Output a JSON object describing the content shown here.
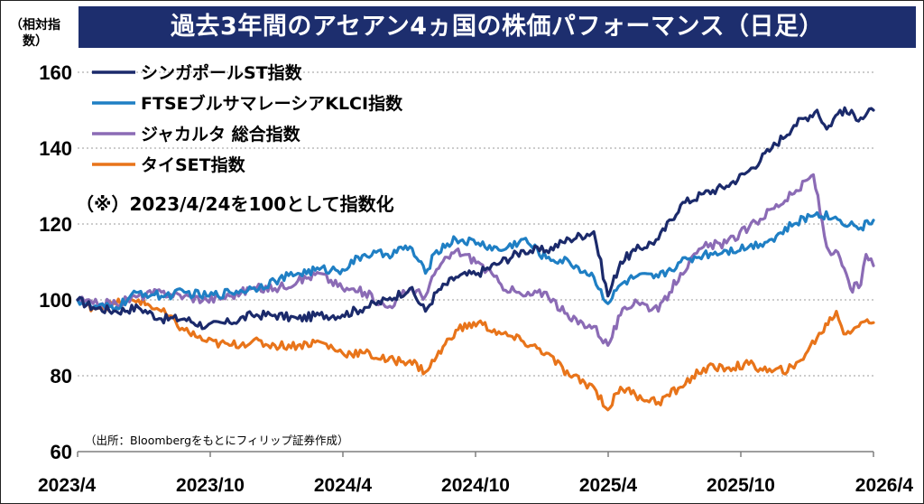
{
  "title": "過去3年間のアセアン4ヵ国の株価パフォーマンス（日足）",
  "y_unit": "（相対指数）",
  "note": "（※）2023/4/24を100として指数化",
  "source": "（出所：Bloombergをもとにフィリップ証券作成）",
  "chart_data": {
    "type": "line",
    "xlabel": "",
    "ylabel": "（相対指数）",
    "ylim": [
      60,
      160
    ],
    "yticks": [
      60,
      80,
      100,
      120,
      140,
      160
    ],
    "xlim": [
      "2023-04-24",
      "2026-04-01"
    ],
    "xticks": [
      "2023/4",
      "2023/10",
      "2024/4",
      "2024/10",
      "2025/4",
      "2025/10",
      "2026/4"
    ],
    "grid": "horizontal dotted",
    "legend_position": "top-left",
    "series": [
      {
        "name": "シンガポールST指数",
        "color": "#1b2a6b",
        "points": [
          [
            "2023-04-24",
            100
          ],
          [
            "2023-05-15",
            98
          ],
          [
            "2023-06-15",
            97
          ],
          [
            "2023-07-15",
            98
          ],
          [
            "2023-08-15",
            95
          ],
          [
            "2023-09-15",
            95
          ],
          [
            "2023-10-15",
            93
          ],
          [
            "2023-11-15",
            94
          ],
          [
            "2023-12-15",
            96
          ],
          [
            "2024-01-15",
            96
          ],
          [
            "2024-02-15",
            95
          ],
          [
            "2024-03-15",
            96
          ],
          [
            "2024-04-15",
            96
          ],
          [
            "2024-05-15",
            98
          ],
          [
            "2024-06-15",
            100
          ],
          [
            "2024-07-15",
            103
          ],
          [
            "2024-08-05",
            97
          ],
          [
            "2024-08-20",
            102
          ],
          [
            "2024-09-15",
            106
          ],
          [
            "2024-10-15",
            107
          ],
          [
            "2024-11-15",
            110
          ],
          [
            "2024-12-15",
            113
          ],
          [
            "2025-01-15",
            113
          ],
          [
            "2025-02-15",
            116
          ],
          [
            "2025-03-20",
            118
          ],
          [
            "2025-04-08",
            101
          ],
          [
            "2025-04-25",
            110
          ],
          [
            "2025-05-15",
            113
          ],
          [
            "2025-06-15",
            116
          ],
          [
            "2025-07-15",
            125
          ],
          [
            "2025-08-15",
            128
          ],
          [
            "2025-09-15",
            130
          ],
          [
            "2025-10-15",
            134
          ],
          [
            "2025-11-15",
            140
          ],
          [
            "2025-12-15",
            146
          ],
          [
            "2026-01-15",
            150
          ],
          [
            "2026-01-28",
            145
          ],
          [
            "2026-02-15",
            150
          ],
          [
            "2026-03-15",
            148
          ],
          [
            "2026-04-01",
            150
          ]
        ]
      },
      {
        "name": "FTSEブルサマレーシアKLCI指数",
        "color": "#1f7fc4",
        "points": [
          [
            "2023-04-24",
            100
          ],
          [
            "2023-05-15",
            98
          ],
          [
            "2023-06-15",
            98
          ],
          [
            "2023-07-15",
            102
          ],
          [
            "2023-08-15",
            101
          ],
          [
            "2023-09-15",
            102
          ],
          [
            "2023-10-15",
            101
          ],
          [
            "2023-11-15",
            102
          ],
          [
            "2023-12-15",
            103
          ],
          [
            "2024-01-15",
            105
          ],
          [
            "2024-02-15",
            107
          ],
          [
            "2024-03-15",
            108
          ],
          [
            "2024-04-15",
            108
          ],
          [
            "2024-05-15",
            112
          ],
          [
            "2024-06-15",
            112
          ],
          [
            "2024-07-15",
            114
          ],
          [
            "2024-08-05",
            107
          ],
          [
            "2024-08-20",
            113
          ],
          [
            "2024-09-15",
            116
          ],
          [
            "2024-10-15",
            115
          ],
          [
            "2024-11-15",
            113
          ],
          [
            "2024-12-15",
            116
          ],
          [
            "2025-01-15",
            111
          ],
          [
            "2025-02-15",
            110
          ],
          [
            "2025-03-20",
            106
          ],
          [
            "2025-04-08",
            99
          ],
          [
            "2025-04-25",
            104
          ],
          [
            "2025-05-15",
            106
          ],
          [
            "2025-06-15",
            106
          ],
          [
            "2025-07-15",
            110
          ],
          [
            "2025-08-15",
            112
          ],
          [
            "2025-09-15",
            113
          ],
          [
            "2025-10-15",
            114
          ],
          [
            "2025-11-15",
            116
          ],
          [
            "2025-12-15",
            120
          ],
          [
            "2026-01-15",
            123
          ],
          [
            "2026-02-15",
            121
          ],
          [
            "2026-03-15",
            119
          ],
          [
            "2026-04-01",
            121
          ]
        ]
      },
      {
        "name": "ジャカルタ 総合指数",
        "color": "#8b6bb5",
        "points": [
          [
            "2023-04-24",
            100
          ],
          [
            "2023-05-15",
            99
          ],
          [
            "2023-06-15",
            99
          ],
          [
            "2023-07-15",
            101
          ],
          [
            "2023-08-15",
            102
          ],
          [
            "2023-09-15",
            101
          ],
          [
            "2023-10-15",
            100
          ],
          [
            "2023-11-15",
            101
          ],
          [
            "2023-12-15",
            103
          ],
          [
            "2024-01-15",
            103
          ],
          [
            "2024-02-15",
            105
          ],
          [
            "2024-03-15",
            107
          ],
          [
            "2024-04-15",
            103
          ],
          [
            "2024-05-15",
            102
          ],
          [
            "2024-06-15",
            98
          ],
          [
            "2024-07-15",
            103
          ],
          [
            "2024-08-05",
            101
          ],
          [
            "2024-08-20",
            108
          ],
          [
            "2024-09-15",
            113
          ],
          [
            "2024-10-15",
            110
          ],
          [
            "2024-11-15",
            104
          ],
          [
            "2024-12-15",
            101
          ],
          [
            "2025-01-15",
            102
          ],
          [
            "2025-02-15",
            95
          ],
          [
            "2025-03-20",
            93
          ],
          [
            "2025-04-08",
            88
          ],
          [
            "2025-04-25",
            96
          ],
          [
            "2025-05-15",
            100
          ],
          [
            "2025-06-15",
            97
          ],
          [
            "2025-07-15",
            107
          ],
          [
            "2025-08-15",
            114
          ],
          [
            "2025-09-15",
            115
          ],
          [
            "2025-10-15",
            119
          ],
          [
            "2025-11-15",
            124
          ],
          [
            "2025-12-15",
            128
          ],
          [
            "2026-01-10",
            133
          ],
          [
            "2026-01-28",
            114
          ],
          [
            "2026-02-15",
            111
          ],
          [
            "2026-03-01",
            103
          ],
          [
            "2026-03-15",
            104
          ],
          [
            "2026-03-22",
            112
          ],
          [
            "2026-04-01",
            109
          ]
        ]
      },
      {
        "name": "タイSET指数",
        "color": "#e8741a",
        "points": [
          [
            "2023-04-24",
            100
          ],
          [
            "2023-05-15",
            98
          ],
          [
            "2023-06-15",
            99
          ],
          [
            "2023-07-15",
            100
          ],
          [
            "2023-08-15",
            97
          ],
          [
            "2023-09-15",
            92
          ],
          [
            "2023-10-15",
            89
          ],
          [
            "2023-11-15",
            88
          ],
          [
            "2023-12-15",
            89
          ],
          [
            "2024-01-15",
            88
          ],
          [
            "2024-02-15",
            88
          ],
          [
            "2024-03-15",
            89
          ],
          [
            "2024-04-15",
            86
          ],
          [
            "2024-05-15",
            86
          ],
          [
            "2024-06-15",
            84
          ],
          [
            "2024-07-15",
            84
          ],
          [
            "2024-08-05",
            81
          ],
          [
            "2024-08-20",
            85
          ],
          [
            "2024-09-15",
            92
          ],
          [
            "2024-10-15",
            94
          ],
          [
            "2024-11-15",
            91
          ],
          [
            "2024-12-15",
            89
          ],
          [
            "2025-01-15",
            86
          ],
          [
            "2025-02-15",
            80
          ],
          [
            "2025-03-20",
            77
          ],
          [
            "2025-04-08",
            71
          ],
          [
            "2025-04-25",
            77
          ],
          [
            "2025-05-15",
            75
          ],
          [
            "2025-06-15",
            73
          ],
          [
            "2025-07-15",
            77
          ],
          [
            "2025-08-15",
            82
          ],
          [
            "2025-09-15",
            82
          ],
          [
            "2025-10-15",
            83
          ],
          [
            "2025-11-15",
            81
          ],
          [
            "2025-12-15",
            82
          ],
          [
            "2026-01-15",
            90
          ],
          [
            "2026-02-10",
            97
          ],
          [
            "2026-02-20",
            91
          ],
          [
            "2026-03-15",
            94
          ],
          [
            "2026-04-01",
            94
          ]
        ]
      }
    ]
  }
}
